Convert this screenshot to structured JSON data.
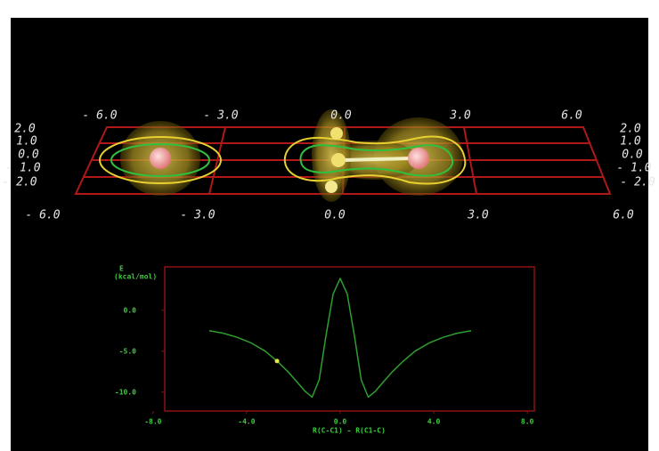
{
  "scene": {
    "top_ticks": [
      "- 6.0",
      "- 3.0",
      "0.0",
      "3.0",
      "6.0"
    ],
    "bottom_ticks": [
      "- 6.0",
      "- 3.0",
      "0.0",
      "3.0",
      "6.0"
    ],
    "left_ticks": [
      "2.0",
      "1.0",
      "0.0",
      "- 1.0",
      "- 2.0"
    ],
    "right_ticks": [
      "2.0",
      "1.0",
      "0.0",
      "- 1.0",
      "- 2.0"
    ]
  },
  "chart_data": {
    "type": "line",
    "y_label": "E",
    "y_unit": "(kcal/mol)",
    "x_label": "R(C-C1) - R(C1-C)",
    "x": [
      -5.6,
      -5.0,
      -4.4,
      -3.8,
      -3.2,
      -2.7,
      -2.2,
      -1.8,
      -1.5,
      -1.2,
      -0.9,
      -0.6,
      -0.3,
      0,
      0.3,
      0.6,
      0.9,
      1.2,
      1.5,
      1.8,
      2.2,
      2.7,
      3.2,
      3.8,
      4.4,
      5.0,
      5.6
    ],
    "values": [
      -2.5,
      -2.8,
      -3.3,
      -4.0,
      -5.0,
      -6.2,
      -7.6,
      -8.9,
      -9.9,
      -10.6,
      -8.5,
      -3.0,
      2.0,
      3.9,
      2.0,
      -3.0,
      -8.5,
      -10.6,
      -9.9,
      -8.9,
      -7.6,
      -6.2,
      -5.0,
      -4.0,
      -3.3,
      -2.8,
      -2.5
    ],
    "color": "#2e9e2e",
    "marker": {
      "x": -2.7,
      "y": -6.2,
      "color": "#e8e84a"
    },
    "xlim": [
      -7.5,
      8.3
    ],
    "ylim": [
      -12.3,
      5.3
    ],
    "xticks": [
      {
        "value": -8,
        "label": "-8.0"
      },
      {
        "value": -4,
        "label": "-4.0"
      },
      {
        "value": 0,
        "label": "0.0"
      },
      {
        "value": 4,
        "label": "4.0"
      },
      {
        "value": 8,
        "label": "8.0"
      }
    ],
    "yticks": [
      {
        "value": 0,
        "label": "0.0"
      },
      {
        "value": -5,
        "label": "-5.0"
      },
      {
        "value": -10,
        "label": "-10.0"
      }
    ],
    "frame_color": "#8a1212"
  }
}
